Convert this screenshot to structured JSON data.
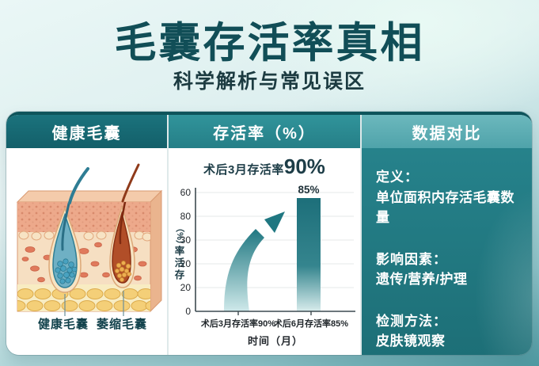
{
  "page": {
    "title": "毛囊存活率真相",
    "subtitle": "科学解析与常见误区"
  },
  "panels": {
    "anatomy": {
      "header": "健康毛囊",
      "label_healthy": "健康毛囊",
      "label_atrophied": "萎缩毛囊"
    },
    "chart": {
      "header": "存活率（%）"
    },
    "comparison": {
      "header": "数据对比",
      "sections": [
        {
          "title": "定义：",
          "body": "单位面积内存活毛囊数量"
        },
        {
          "title": "影响因素：",
          "body": "遗传/营养/护理"
        },
        {
          "title": "检测方法：",
          "body": "皮肤镜观察"
        }
      ]
    }
  },
  "chart_data": {
    "type": "bar",
    "title": "存活率（%）",
    "annotation": {
      "prefix": "术后3月存活率",
      "value": "90%"
    },
    "categories": [
      "术后3月存活率90%",
      "术后6月存活率85%"
    ],
    "series": [
      {
        "name": "存活率",
        "values": [
          90,
          85
        ]
      }
    ],
    "bar_value_label": "85%",
    "yticks": [
      "60",
      "80",
      "30",
      "20",
      "20",
      "0"
    ],
    "ylabel": "存活率（%）",
    "xlabel": "时间（月）",
    "grid": true,
    "legend": false
  },
  "colors": {
    "title_text": "#114e57",
    "header_dark": "#176a74",
    "header_mid": "#2b8e96",
    "header_light": "#5eb1b7",
    "panel_teal_bg": "#1f767e",
    "bar_dark": "#1d6f7a",
    "swoosh_dark": "#1f7781",
    "follicle_healthy": "#6fb0c4",
    "follicle_atrophied": "#b14e28"
  }
}
